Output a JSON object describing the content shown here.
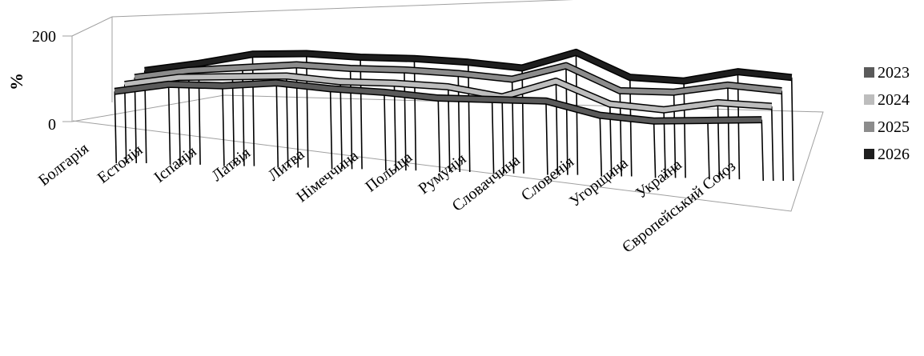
{
  "chart_data": {
    "type": "line",
    "style": "3d-line",
    "ylabel": "%",
    "ylim": [
      0,
      200
    ],
    "yticks": [
      "0",
      "200"
    ],
    "categories": [
      "Болгарія",
      "Естонія",
      "Іспанія",
      "Латвія",
      "Литва",
      "Німеччина",
      "Польща",
      "Румунія",
      "Словаччина",
      "Словенія",
      "Угорщина",
      "Україна",
      "Європейський Союз"
    ],
    "series": [
      {
        "name": "2023",
        "color": "#5a5a5a",
        "values": [
          65,
          85,
          85,
          95,
          85,
          80,
          70,
          70,
          70,
          40,
          30,
          35,
          40
        ]
      },
      {
        "name": "2024",
        "color": "#bdbdbd",
        "values": [
          70,
          90,
          95,
          100,
          90,
          90,
          85,
          65,
          105,
          55,
          45,
          65,
          60
        ]
      },
      {
        "name": "2025",
        "color": "#8c8c8c",
        "values": [
          75,
          95,
          105,
          115,
          110,
          110,
          105,
          95,
          130,
          75,
          75,
          95,
          85
        ]
      },
      {
        "name": "2026",
        "color": "#1e1e1e",
        "values": [
          80,
          100,
          125,
          130,
          125,
          125,
          120,
          110,
          150,
          95,
          90,
          115,
          105
        ]
      }
    ],
    "legend": "right"
  }
}
